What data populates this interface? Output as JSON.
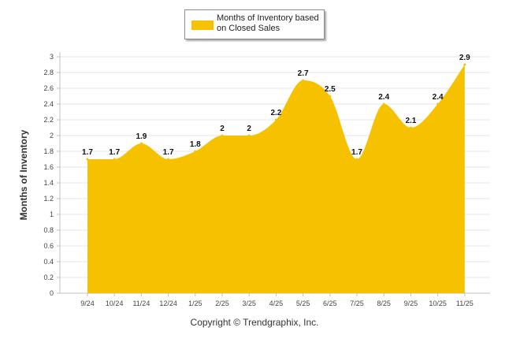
{
  "chart_data": {
    "type": "area",
    "title": "",
    "xlabel": "",
    "ylabel": "Months of Inventory",
    "categories": [
      "9/24",
      "10/24",
      "11/24",
      "12/24",
      "1/25",
      "2/25",
      "3/25",
      "4/25",
      "5/25",
      "6/25",
      "7/25",
      "8/25",
      "9/25",
      "10/25",
      "11/25"
    ],
    "series": [
      {
        "name": "Months of Inventory based on Closed Sales",
        "values": [
          1.7,
          1.7,
          1.9,
          1.7,
          1.8,
          2,
          2,
          2.2,
          2.7,
          2.5,
          1.7,
          2.4,
          2.1,
          2.4,
          2.9
        ]
      }
    ],
    "data_labels": [
      "1.7",
      "1.7",
      "1.9",
      "1.7",
      "1.8",
      "2",
      "2",
      "2.2",
      "2.7",
      "2.5",
      "1.7",
      "2.4",
      "2.1",
      "2.4",
      "2.9"
    ],
    "yticks": [
      "0",
      "0.2",
      "0.4",
      "0.6",
      "0.8",
      "1",
      "1.2",
      "1.4",
      "1.6",
      "1.8",
      "2",
      "2.2",
      "2.4",
      "2.6",
      "2.8",
      "3"
    ],
    "ylim": [
      0,
      3
    ],
    "grid": true,
    "legend_position": "top-center"
  },
  "legend": {
    "label": "Months of Inventory based on Closed Sales"
  },
  "footer": {
    "copyright": "Copyright © Trendgraphix, Inc."
  },
  "colors": {
    "fill": "#f6c200",
    "grid": "#e6e6e6",
    "axis": "#bfbfbf",
    "tick_text": "#444444",
    "label_text": "#111111"
  }
}
